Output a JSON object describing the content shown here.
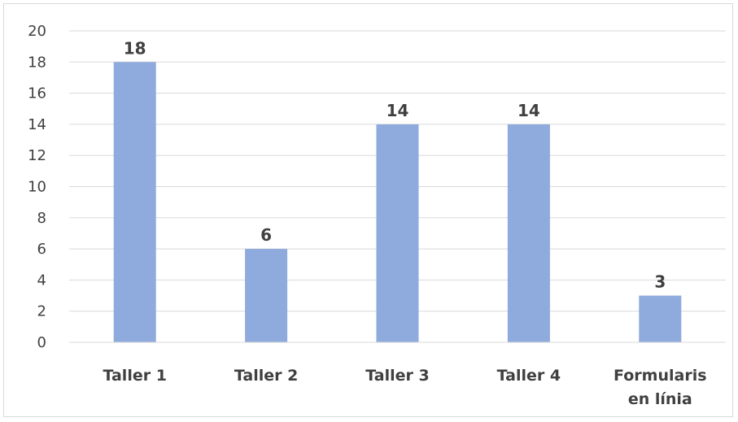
{
  "chart_data": {
    "type": "bar",
    "categories": [
      [
        "Taller 1"
      ],
      [
        "Taller 2"
      ],
      [
        "Taller 3"
      ],
      [
        "Taller 4"
      ],
      [
        "Formularis",
        "en línia"
      ]
    ],
    "values": [
      18,
      6,
      14,
      14,
      3
    ],
    "ylim": [
      0,
      20
    ],
    "yticks": [
      0,
      2,
      4,
      6,
      8,
      10,
      12,
      14,
      16,
      18,
      20
    ],
    "grid": true,
    "legend": "none",
    "bar_color": "#8FAADC",
    "title": "",
    "xlabel": "",
    "ylabel": ""
  }
}
